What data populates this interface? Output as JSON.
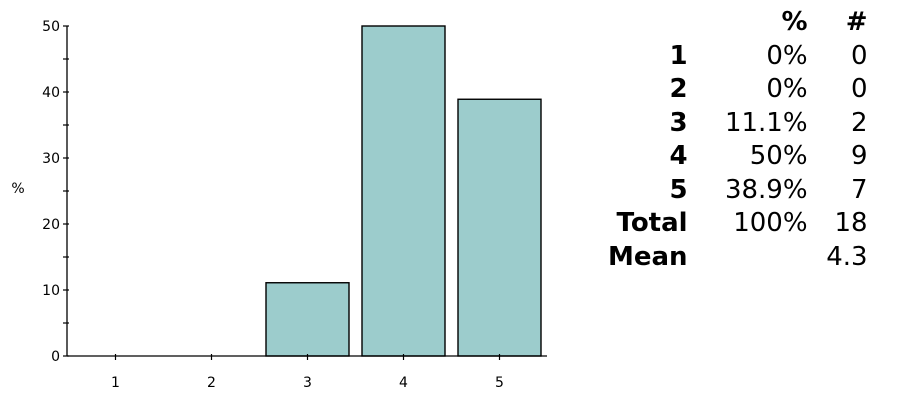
{
  "chart_data": {
    "type": "bar",
    "categories": [
      "1",
      "2",
      "3",
      "4",
      "5"
    ],
    "values": [
      0,
      0,
      11.1,
      50,
      38.9
    ],
    "ylabel": "%",
    "xlabel": "",
    "ylim": [
      0,
      50
    ],
    "yticks": [
      0,
      10,
      20,
      30,
      40,
      50
    ],
    "bar_color": "#9ccccc",
    "grid": false
  },
  "table": {
    "headers": [
      "",
      "%",
      "#"
    ],
    "rows": [
      {
        "label": "1",
        "pct": "0%",
        "n": "0"
      },
      {
        "label": "2",
        "pct": "0%",
        "n": "0"
      },
      {
        "label": "3",
        "pct": "11.1%",
        "n": "2"
      },
      {
        "label": "4",
        "pct": "50%",
        "n": "9"
      },
      {
        "label": "5",
        "pct": "38.9%",
        "n": "7"
      },
      {
        "label": "Total",
        "pct": "100%",
        "n": "18"
      },
      {
        "label": "Mean",
        "pct": "",
        "n": "4.3"
      }
    ]
  }
}
